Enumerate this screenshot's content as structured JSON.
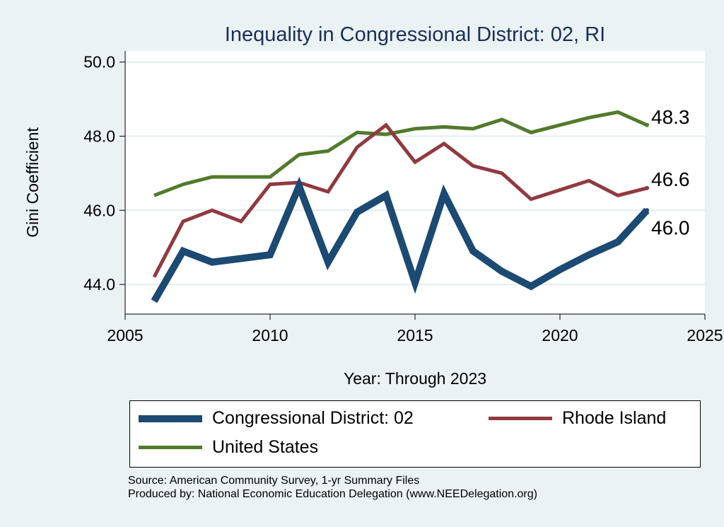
{
  "chart_data": {
    "type": "line",
    "title": "Inequality in Congressional District:  02, RI",
    "xlabel": "Year: Through 2023",
    "ylabel": "Gini Coefficient",
    "xlim": [
      2005,
      2025
    ],
    "ylim": [
      43.2,
      50.3
    ],
    "xticks": [
      2005,
      2010,
      2015,
      2020,
      2025
    ],
    "xtick_labels": [
      "2005",
      "2010",
      "2015",
      "2020",
      "2025"
    ],
    "yticks": [
      44,
      46,
      48,
      50
    ],
    "ytick_labels": [
      "44.0",
      "46.0",
      "48.0",
      "50.0"
    ],
    "grid": true,
    "legend_position": "bottom",
    "series": [
      {
        "name": "Congressional District:  02",
        "color": "#1b4a72",
        "x": [
          2006,
          2007,
          2008,
          2009,
          2010,
          2011,
          2012,
          2013,
          2014,
          2015,
          2016,
          2017,
          2018,
          2019,
          2020,
          2021,
          2022,
          2023
        ],
        "y": [
          43.55,
          44.9,
          44.6,
          44.7,
          44.8,
          46.65,
          44.6,
          45.95,
          46.4,
          44.05,
          46.45,
          44.9,
          44.35,
          43.95,
          44.4,
          44.8,
          45.15,
          46.0
        ],
        "end_label": "46.0"
      },
      {
        "name": "Rhode Island",
        "color": "#903a40",
        "x": [
          2006,
          2007,
          2008,
          2009,
          2010,
          2011,
          2012,
          2013,
          2014,
          2015,
          2016,
          2017,
          2018,
          2019,
          2020,
          2021,
          2022,
          2023
        ],
        "y": [
          44.2,
          45.7,
          46.0,
          45.7,
          46.7,
          46.75,
          46.5,
          47.7,
          48.3,
          47.3,
          47.8,
          47.2,
          47.0,
          46.3,
          46.55,
          46.8,
          46.4,
          46.6
        ],
        "end_label": "46.6"
      },
      {
        "name": "United States",
        "color": "#527a2c",
        "x": [
          2006,
          2007,
          2008,
          2009,
          2010,
          2011,
          2012,
          2013,
          2014,
          2015,
          2016,
          2017,
          2018,
          2019,
          2020,
          2021,
          2022,
          2023
        ],
        "y": [
          46.4,
          46.7,
          46.9,
          46.9,
          46.9,
          47.5,
          47.6,
          48.1,
          48.05,
          48.2,
          48.25,
          48.2,
          48.45,
          48.1,
          48.3,
          48.5,
          48.65,
          48.3
        ],
        "end_label": "48.3"
      }
    ],
    "legend_labels": [
      "Congressional District:  02",
      "Rhode Island",
      "United States"
    ]
  },
  "source": {
    "line1": "Source: American Community Survey, 1-yr Summary Files",
    "line2": "Produced by: National Economic Education Delegation (www.NEEDelegation.org)"
  }
}
